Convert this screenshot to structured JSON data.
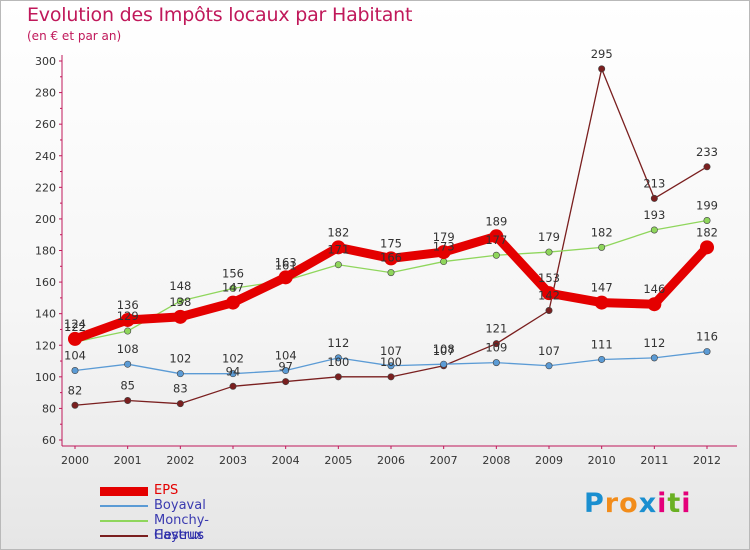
{
  "chart_data": {
    "type": "line",
    "title": "Evolution des Impôts locaux par Habitant",
    "subtitle": "(en € et par an)",
    "xlabel": "",
    "ylabel": "",
    "categories": [
      "2000",
      "2001",
      "2002",
      "2003",
      "2004",
      "2005",
      "2006",
      "2007",
      "2008",
      "2009",
      "2010",
      "2011",
      "2012"
    ],
    "ylim": [
      60,
      300
    ],
    "yticks": [
      60,
      80,
      100,
      120,
      140,
      160,
      180,
      200,
      220,
      240,
      260,
      280,
      300
    ],
    "series": [
      {
        "name": "EPS",
        "color": "#e40000",
        "values": [
          124,
          136,
          138,
          147,
          163,
          182,
          175,
          179,
          189,
          153,
          147,
          146,
          182
        ],
        "labels": [
          "124",
          "136",
          "138",
          "147",
          "163",
          "182",
          "175",
          "179",
          "189",
          "153",
          "147",
          "146",
          "182"
        ]
      },
      {
        "name": "Boyaval",
        "color": "#5b9bd5",
        "values": [
          104,
          108,
          102,
          102,
          104,
          112,
          107,
          108,
          109,
          107,
          111,
          112,
          116
        ],
        "labels": [
          "104",
          "108",
          "102",
          "102",
          "104",
          "112",
          "107",
          "108",
          "109",
          "107",
          "111",
          "112",
          "116"
        ]
      },
      {
        "name": "Monchy-Cayeux",
        "color": "#8fd65c",
        "values": [
          122,
          129,
          148,
          156,
          161,
          171,
          166,
          173,
          177,
          179,
          182,
          193,
          199
        ],
        "labels": [
          "122",
          "129",
          "148",
          "156",
          "161",
          "171",
          "166",
          "173",
          "177",
          "179",
          "182",
          "193",
          "199"
        ]
      },
      {
        "name": "Hestrus",
        "color": "#7a1f1f",
        "values": [
          82,
          85,
          83,
          94,
          97,
          100,
          100,
          107,
          121,
          142,
          295,
          213,
          233
        ],
        "labels": [
          "82",
          "85",
          "83",
          "94",
          "97",
          "100",
          "100",
          "107",
          "121",
          "142",
          "295",
          "213",
          "233"
        ]
      }
    ],
    "legend": "bottom-left",
    "grid": false
  },
  "logo": {
    "letters": [
      "P",
      "r",
      "o",
      "x",
      "i",
      "t",
      "i"
    ],
    "colors": [
      "#1a8fd0",
      "#f28c1a",
      "#f28c1a",
      "#1a8fd0",
      "#e4007a",
      "#6ab023",
      "#e4007a"
    ]
  }
}
